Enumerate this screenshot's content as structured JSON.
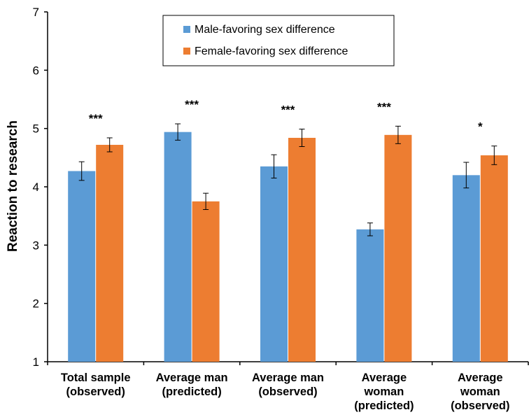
{
  "chart_data": {
    "type": "bar",
    "title": "",
    "xlabel": "",
    "ylabel": "Reaction to research",
    "ylim": [
      1,
      7
    ],
    "yticks": [
      "1",
      "2",
      "3",
      "4",
      "5",
      "6",
      "7"
    ],
    "grid": false,
    "legend_position": "top-center",
    "categories": [
      [
        "Total sample",
        "(observed)"
      ],
      [
        "Average man",
        "(predicted)"
      ],
      [
        "Average man",
        "(observed)"
      ],
      [
        "Average",
        "woman",
        "(predicted)"
      ],
      [
        "Average",
        "woman",
        "(observed)"
      ]
    ],
    "series": [
      {
        "name": "Male-favoring sex difference",
        "color": "#5b9bd5",
        "values": [
          4.27,
          4.94,
          4.35,
          3.27,
          4.2
        ],
        "error": [
          0.16,
          0.14,
          0.2,
          0.11,
          0.22
        ]
      },
      {
        "name": "Female-favoring sex difference",
        "color": "#ed7d31",
        "values": [
          4.72,
          3.75,
          4.84,
          4.89,
          4.54
        ],
        "error": [
          0.12,
          0.14,
          0.15,
          0.15,
          0.16
        ]
      }
    ],
    "significance": [
      "***",
      "***",
      "***",
      "***",
      "*"
    ]
  }
}
